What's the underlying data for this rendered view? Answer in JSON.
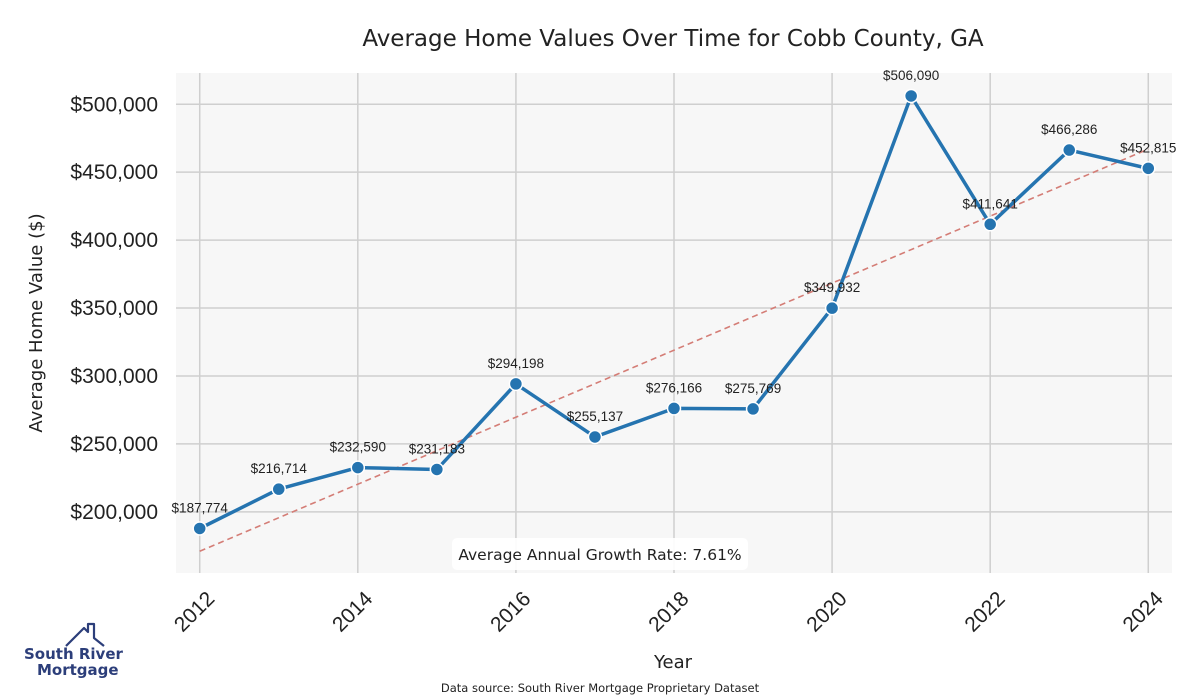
{
  "chart_data": {
    "type": "line",
    "title": "Average Home Values Over Time for Cobb County, GA",
    "xlabel": "Year",
    "ylabel": "Average Home Value ($)",
    "x": [
      2012,
      2013,
      2014,
      2015,
      2016,
      2017,
      2018,
      2019,
      2020,
      2021,
      2022,
      2023,
      2024
    ],
    "values": [
      187774,
      216714,
      232590,
      231183,
      294198,
      255137,
      276166,
      275769,
      349932,
      506090,
      411641,
      466286,
      452815
    ],
    "data_labels": [
      "$187,774",
      "$216,714",
      "$232,590",
      "$231,183",
      "$294,198",
      "$255,137",
      "$276,166",
      "$275,769",
      "$349,932",
      "$506,090",
      "$411,641",
      "$466,286",
      "$452,815"
    ],
    "xlim": [
      2011.7,
      2024.3
    ],
    "ylim": [
      155000,
      523000
    ],
    "yticks": [
      200000,
      250000,
      300000,
      350000,
      400000,
      450000,
      500000
    ],
    "ytick_labels": [
      "$200,000",
      "$250,000",
      "$300,000",
      "$350,000",
      "$400,000",
      "$450,000",
      "$500,000"
    ],
    "xticks": [
      2012,
      2014,
      2016,
      2018,
      2020,
      2022,
      2024
    ],
    "xtick_labels": [
      "2012",
      "2014",
      "2016",
      "2018",
      "2020",
      "2022",
      "2024"
    ],
    "trend": {
      "start_value": 171000,
      "end_value": 467000
    },
    "grid": true,
    "annotation": "Average Annual Growth Rate: 7.61%",
    "source": "Data source: South River Mortgage Proprietary Dataset",
    "colors": {
      "line": "#2574b0",
      "trend": "#d47d76",
      "plot_bg": "#f7f7f7",
      "grid": "#cfcfcf"
    }
  },
  "logo": {
    "line1": "South River",
    "line2": "Mortgage",
    "color": "#2c3e7a"
  }
}
